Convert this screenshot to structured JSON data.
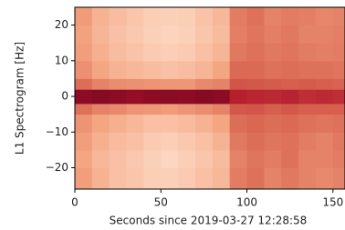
{
  "chart_data": {
    "type": "heatmap",
    "xlabel": "Seconds since 2019-03-27 12:28:58",
    "ylabel": "L1 Spectrogram [Hz]",
    "xlim": [
      0,
      157
    ],
    "ylim": [
      -26,
      25
    ],
    "xticks": [
      0,
      50,
      100,
      150
    ],
    "yticks": [
      {
        "value": -20,
        "label": "−20"
      },
      {
        "value": -10,
        "label": "−10"
      },
      0,
      10,
      20
    ],
    "x_edges": [
      0,
      10,
      20,
      30,
      40,
      50,
      60,
      70,
      80,
      90,
      100,
      110,
      120,
      130,
      140,
      150,
      157
    ],
    "y_edges": [
      -26,
      -20,
      -15,
      -10,
      -5,
      -2,
      2,
      5,
      10,
      15,
      20,
      25
    ],
    "zlim": [
      0,
      1
    ],
    "colormap": [
      "#f7f7f7",
      "#fddbc7",
      "#f4a582",
      "#d6604d",
      "#b2182b",
      "#67001f"
    ],
    "values": [
      [
        0.42,
        0.35,
        0.3,
        0.28,
        0.25,
        0.24,
        0.26,
        0.3,
        0.33,
        0.52,
        0.55,
        0.5,
        0.53,
        0.5,
        0.48,
        0.5
      ],
      [
        0.4,
        0.33,
        0.3,
        0.27,
        0.24,
        0.22,
        0.25,
        0.28,
        0.32,
        0.5,
        0.54,
        0.52,
        0.55,
        0.5,
        0.5,
        0.52
      ],
      [
        0.42,
        0.36,
        0.32,
        0.3,
        0.26,
        0.25,
        0.27,
        0.3,
        0.35,
        0.53,
        0.56,
        0.54,
        0.55,
        0.52,
        0.5,
        0.53
      ],
      [
        0.45,
        0.4,
        0.36,
        0.33,
        0.3,
        0.3,
        0.32,
        0.35,
        0.4,
        0.56,
        0.58,
        0.56,
        0.57,
        0.55,
        0.54,
        0.55
      ],
      [
        0.55,
        0.5,
        0.48,
        0.45,
        0.44,
        0.43,
        0.45,
        0.47,
        0.5,
        0.62,
        0.63,
        0.6,
        0.62,
        0.6,
        0.6,
        0.6
      ],
      [
        0.9,
        0.92,
        0.9,
        0.88,
        0.9,
        0.91,
        0.9,
        0.92,
        0.9,
        0.78,
        0.76,
        0.75,
        0.77,
        0.74,
        0.75,
        0.74
      ],
      [
        0.56,
        0.5,
        0.47,
        0.46,
        0.45,
        0.44,
        0.44,
        0.48,
        0.5,
        0.63,
        0.62,
        0.61,
        0.6,
        0.61,
        0.6,
        0.59
      ],
      [
        0.46,
        0.4,
        0.35,
        0.33,
        0.31,
        0.3,
        0.31,
        0.34,
        0.4,
        0.57,
        0.57,
        0.55,
        0.56,
        0.55,
        0.55,
        0.54
      ],
      [
        0.42,
        0.36,
        0.31,
        0.29,
        0.26,
        0.25,
        0.26,
        0.3,
        0.34,
        0.53,
        0.55,
        0.53,
        0.54,
        0.52,
        0.51,
        0.52
      ],
      [
        0.41,
        0.34,
        0.3,
        0.27,
        0.24,
        0.23,
        0.24,
        0.28,
        0.32,
        0.51,
        0.54,
        0.51,
        0.53,
        0.5,
        0.5,
        0.51
      ],
      [
        0.43,
        0.35,
        0.31,
        0.28,
        0.25,
        0.24,
        0.25,
        0.29,
        0.33,
        0.52,
        0.55,
        0.5,
        0.52,
        0.51,
        0.49,
        0.5
      ]
    ]
  }
}
